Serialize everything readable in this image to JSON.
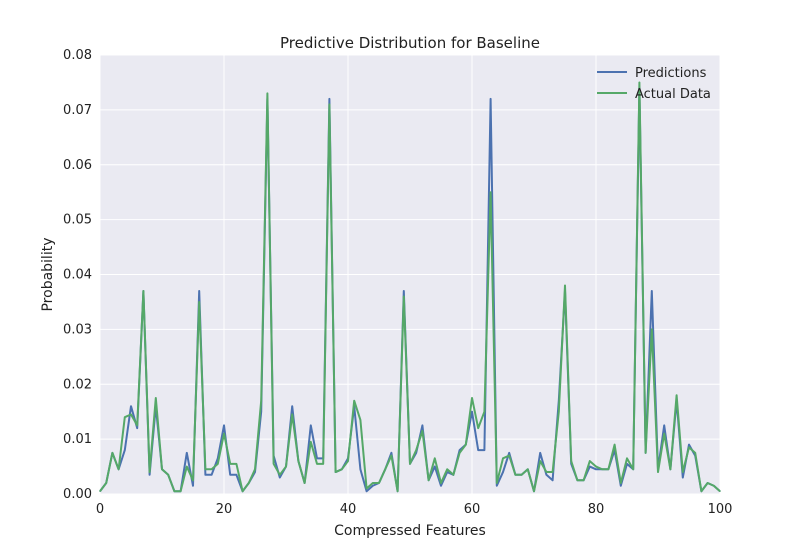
{
  "chart_data": {
    "type": "line",
    "title": "Predictive Distribution for Baseline",
    "xlabel": "Compressed Features",
    "ylabel": "Probability",
    "xlim": [
      0,
      100
    ],
    "ylim": [
      0,
      0.08
    ],
    "xticks": [
      "0",
      "20",
      "40",
      "60",
      "80",
      "100"
    ],
    "yticks": [
      "0.00",
      "0.01",
      "0.02",
      "0.03",
      "0.04",
      "0.05",
      "0.06",
      "0.07",
      "0.08"
    ],
    "grid": true,
    "legend_position": "top-right",
    "x": [
      0,
      1,
      2,
      3,
      4,
      5,
      6,
      7,
      8,
      9,
      10,
      11,
      12,
      13,
      14,
      15,
      16,
      17,
      18,
      19,
      20,
      21,
      22,
      23,
      24,
      25,
      26,
      27,
      28,
      29,
      30,
      31,
      32,
      33,
      34,
      35,
      36,
      37,
      38,
      39,
      40,
      41,
      42,
      43,
      44,
      45,
      46,
      47,
      48,
      49,
      50,
      51,
      52,
      53,
      54,
      55,
      56,
      57,
      58,
      59,
      60,
      61,
      62,
      63,
      64,
      65,
      66,
      67,
      68,
      69,
      70,
      71,
      72,
      73,
      74,
      75,
      76,
      77,
      78,
      79,
      80,
      81,
      82,
      83,
      84,
      85,
      86,
      87,
      88,
      89,
      90,
      91,
      92,
      93,
      94,
      95,
      96,
      97,
      98,
      99,
      100
    ],
    "series": [
      {
        "name": "Predictions",
        "color": "#4c72b0",
        "values": [
          0.0005,
          0.002,
          0.0075,
          0.0045,
          0.008,
          0.016,
          0.012,
          0.037,
          0.0035,
          0.016,
          0.0045,
          0.0035,
          0.0005,
          0.0005,
          0.0075,
          0.0015,
          0.037,
          0.0035,
          0.0035,
          0.0065,
          0.0125,
          0.0035,
          0.0035,
          0.0005,
          0.002,
          0.004,
          0.015,
          0.072,
          0.007,
          0.003,
          0.005,
          0.016,
          0.006,
          0.002,
          0.0125,
          0.0065,
          0.0065,
          0.072,
          0.004,
          0.0045,
          0.0065,
          0.016,
          0.0045,
          0.0005,
          0.0015,
          0.002,
          0.0045,
          0.0075,
          0.0005,
          0.037,
          0.0055,
          0.0075,
          0.0125,
          0.0025,
          0.005,
          0.0015,
          0.004,
          0.0035,
          0.008,
          0.009,
          0.015,
          0.008,
          0.008,
          0.072,
          0.0015,
          0.004,
          0.0075,
          0.0035,
          0.0035,
          0.0045,
          0.0005,
          0.0075,
          0.0035,
          0.0025,
          0.017,
          0.037,
          0.0055,
          0.0025,
          0.0025,
          0.005,
          0.0045,
          0.0045,
          0.0045,
          0.008,
          0.0015,
          0.0055,
          0.0045,
          0.074,
          0.0075,
          0.037,
          0.0045,
          0.0125,
          0.0045,
          0.017,
          0.003,
          0.009,
          0.007,
          0.0005,
          0.002,
          0.0015,
          0.0005
        ]
      },
      {
        "name": "Actual Data",
        "color": "#55a868",
        "values": [
          0.0005,
          0.002,
          0.0075,
          0.0045,
          0.014,
          0.0145,
          0.0125,
          0.037,
          0.004,
          0.0175,
          0.0045,
          0.0035,
          0.0005,
          0.0005,
          0.005,
          0.0025,
          0.035,
          0.0045,
          0.0045,
          0.0055,
          0.011,
          0.0055,
          0.0055,
          0.0005,
          0.002,
          0.0045,
          0.017,
          0.073,
          0.0055,
          0.0035,
          0.005,
          0.0145,
          0.006,
          0.002,
          0.0095,
          0.0055,
          0.0055,
          0.071,
          0.004,
          0.0045,
          0.006,
          0.017,
          0.0135,
          0.001,
          0.002,
          0.002,
          0.0045,
          0.007,
          0.0005,
          0.036,
          0.0055,
          0.008,
          0.0115,
          0.0025,
          0.0065,
          0.002,
          0.0045,
          0.0035,
          0.0075,
          0.009,
          0.0175,
          0.012,
          0.015,
          0.055,
          0.002,
          0.0065,
          0.007,
          0.0035,
          0.0035,
          0.0045,
          0.0005,
          0.006,
          0.004,
          0.004,
          0.015,
          0.038,
          0.006,
          0.0025,
          0.0025,
          0.006,
          0.005,
          0.0045,
          0.0045,
          0.009,
          0.002,
          0.0065,
          0.0045,
          0.075,
          0.0075,
          0.03,
          0.004,
          0.011,
          0.0045,
          0.018,
          0.004,
          0.0085,
          0.0075,
          0.0005,
          0.002,
          0.0015,
          0.0005
        ]
      }
    ]
  }
}
